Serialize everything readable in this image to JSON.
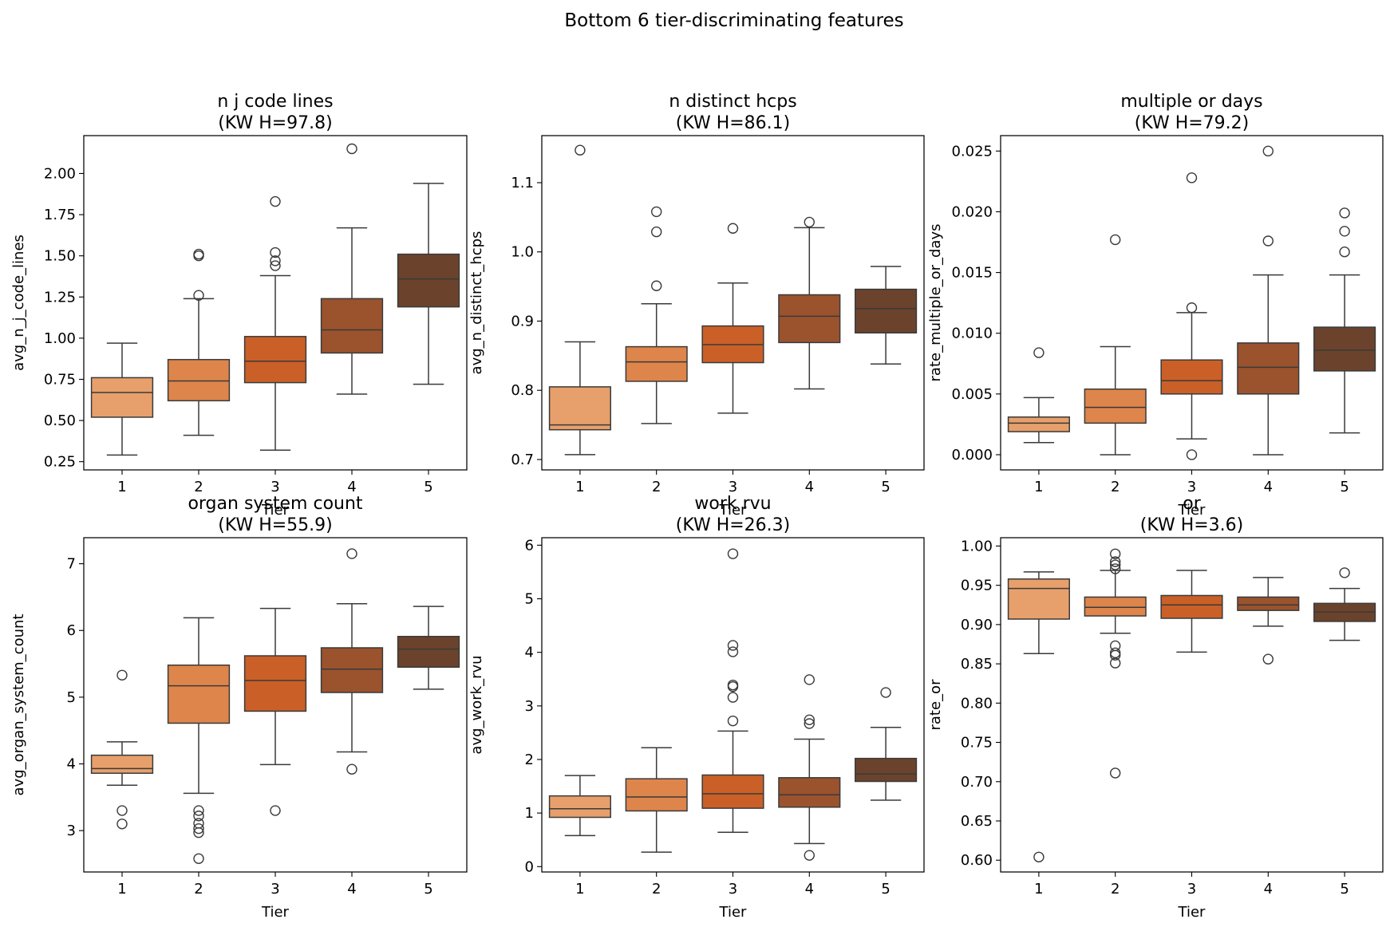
{
  "suptitle": "Bottom 6 tier-discriminating features",
  "chart_data": [
    {
      "type": "box",
      "title": "n j code lines",
      "subtitle": "(KW H=97.8)",
      "xlabel": "Tier",
      "ylabel": "avg_n_j_code_lines",
      "categories": [
        "1",
        "2",
        "3",
        "4",
        "5"
      ],
      "ylim": [
        0.2,
        2.23
      ],
      "yticks": [
        0.25,
        0.5,
        0.75,
        1.0,
        1.25,
        1.5,
        1.75,
        2.0
      ],
      "ytick_labels": [
        "0.25",
        "0.50",
        "0.75",
        "1.00",
        "1.25",
        "1.50",
        "1.75",
        "2.00"
      ],
      "boxes": [
        {
          "tier": "1",
          "whislo": 0.29,
          "q1": 0.52,
          "med": 0.67,
          "q3": 0.76,
          "whishi": 0.97,
          "fliers": []
        },
        {
          "tier": "2",
          "whislo": 0.41,
          "q1": 0.62,
          "med": 0.74,
          "q3": 0.87,
          "whishi": 1.24,
          "fliers": [
            1.26,
            1.5,
            1.51
          ]
        },
        {
          "tier": "3",
          "whislo": 0.32,
          "q1": 0.73,
          "med": 0.86,
          "q3": 1.01,
          "whishi": 1.38,
          "fliers": [
            1.44,
            1.47,
            1.52,
            1.83
          ]
        },
        {
          "tier": "4",
          "whislo": 0.66,
          "q1": 0.91,
          "med": 1.05,
          "q3": 1.24,
          "whishi": 1.67,
          "fliers": [
            2.15
          ]
        },
        {
          "tier": "5",
          "whislo": 0.72,
          "q1": 1.19,
          "med": 1.36,
          "q3": 1.51,
          "whishi": 1.94,
          "fliers": []
        }
      ]
    },
    {
      "type": "box",
      "title": "n distinct hcps",
      "subtitle": "(KW H=86.1)",
      "xlabel": "Tier",
      "ylabel": "avg_n_distinct_hcps",
      "categories": [
        "1",
        "2",
        "3",
        "4",
        "5"
      ],
      "ylim": [
        0.685,
        1.168
      ],
      "yticks": [
        0.7,
        0.8,
        0.9,
        1.0,
        1.1
      ],
      "ytick_labels": [
        "0.7",
        "0.8",
        "0.9",
        "1.0",
        "1.1"
      ],
      "boxes": [
        {
          "tier": "1",
          "whislo": 0.707,
          "q1": 0.743,
          "med": 0.75,
          "q3": 0.805,
          "whishi": 0.87,
          "fliers": [
            1.147
          ]
        },
        {
          "tier": "2",
          "whislo": 0.752,
          "q1": 0.813,
          "med": 0.841,
          "q3": 0.863,
          "whishi": 0.925,
          "fliers": [
            0.951,
            1.029,
            1.058
          ]
        },
        {
          "tier": "3",
          "whislo": 0.767,
          "q1": 0.84,
          "med": 0.866,
          "q3": 0.893,
          "whishi": 0.955,
          "fliers": [
            1.034
          ]
        },
        {
          "tier": "4",
          "whislo": 0.802,
          "q1": 0.869,
          "med": 0.907,
          "q3": 0.938,
          "whishi": 1.035,
          "fliers": [
            1.043
          ]
        },
        {
          "tier": "5",
          "whislo": 0.838,
          "q1": 0.883,
          "med": 0.918,
          "q3": 0.946,
          "whishi": 0.979,
          "fliers": []
        }
      ]
    },
    {
      "type": "box",
      "title": "multiple or days",
      "subtitle": "(KW H=79.2)",
      "xlabel": "Tier",
      "ylabel": "rate_multiple_or_days",
      "categories": [
        "1",
        "2",
        "3",
        "4",
        "5"
      ],
      "ylim": [
        -0.00125,
        0.02627
      ],
      "yticks": [
        0.0,
        0.005,
        0.01,
        0.015,
        0.02,
        0.025
      ],
      "ytick_labels": [
        "0.000",
        "0.005",
        "0.010",
        "0.015",
        "0.020",
        "0.025"
      ],
      "boxes": [
        {
          "tier": "1",
          "whislo": 0.001,
          "q1": 0.0019,
          "med": 0.0026,
          "q3": 0.0031,
          "whishi": 0.0047,
          "fliers": [
            0.0084
          ]
        },
        {
          "tier": "2",
          "whislo": 0.0,
          "q1": 0.0026,
          "med": 0.0039,
          "q3": 0.0054,
          "whishi": 0.0089,
          "fliers": [
            0.0177
          ]
        },
        {
          "tier": "3",
          "whislo": 0.0013,
          "q1": 0.005,
          "med": 0.0061,
          "q3": 0.0078,
          "whishi": 0.0117,
          "fliers": [
            0.0,
            0.0121,
            0.0228
          ]
        },
        {
          "tier": "4",
          "whislo": 0.0,
          "q1": 0.005,
          "med": 0.0072,
          "q3": 0.0092,
          "whishi": 0.0148,
          "fliers": [
            0.0176,
            0.025
          ]
        },
        {
          "tier": "5",
          "whislo": 0.0018,
          "q1": 0.0069,
          "med": 0.0086,
          "q3": 0.0105,
          "whishi": 0.0148,
          "fliers": [
            0.0167,
            0.0184,
            0.0199
          ]
        }
      ]
    },
    {
      "type": "box",
      "title": "organ system count",
      "subtitle": "(KW H=55.9)",
      "xlabel": "Tier",
      "ylabel": "avg_organ_system_count",
      "categories": [
        "1",
        "2",
        "3",
        "4",
        "5"
      ],
      "ylim": [
        2.38,
        7.39
      ],
      "yticks": [
        3,
        4,
        5,
        6,
        7
      ],
      "ytick_labels": [
        "3",
        "4",
        "5",
        "6",
        "7"
      ],
      "boxes": [
        {
          "tier": "1",
          "whislo": 3.68,
          "q1": 3.86,
          "med": 3.93,
          "q3": 4.13,
          "whishi": 4.33,
          "fliers": [
            3.1,
            3.3,
            5.33
          ]
        },
        {
          "tier": "2",
          "whislo": 3.56,
          "q1": 4.61,
          "med": 5.17,
          "q3": 5.48,
          "whishi": 6.19,
          "fliers": [
            2.58,
            2.97,
            3.03,
            3.11,
            3.22,
            3.3
          ]
        },
        {
          "tier": "3",
          "whislo": 3.99,
          "q1": 4.79,
          "med": 5.25,
          "q3": 5.62,
          "whishi": 6.33,
          "fliers": [
            3.3
          ]
        },
        {
          "tier": "4",
          "whislo": 4.18,
          "q1": 5.07,
          "med": 5.42,
          "q3": 5.74,
          "whishi": 6.4,
          "fliers": [
            3.92,
            7.15
          ]
        },
        {
          "tier": "5",
          "whislo": 5.12,
          "q1": 5.45,
          "med": 5.72,
          "q3": 5.91,
          "whishi": 6.36,
          "fliers": []
        }
      ]
    },
    {
      "type": "box",
      "title": "work rvu",
      "subtitle": "(KW H=26.3)",
      "xlabel": "Tier",
      "ylabel": "avg_work_rvu",
      "categories": [
        "1",
        "2",
        "3",
        "4",
        "5"
      ],
      "ylim": [
        -0.1,
        6.14
      ],
      "yticks": [
        0,
        1,
        2,
        3,
        4,
        5,
        6
      ],
      "ytick_labels": [
        "0",
        "1",
        "2",
        "3",
        "4",
        "5",
        "6"
      ],
      "boxes": [
        {
          "tier": "1",
          "whislo": 0.58,
          "q1": 0.92,
          "med": 1.08,
          "q3": 1.32,
          "whishi": 1.7,
          "fliers": []
        },
        {
          "tier": "2",
          "whislo": 0.27,
          "q1": 1.04,
          "med": 1.3,
          "q3": 1.64,
          "whishi": 2.22,
          "fliers": []
        },
        {
          "tier": "3",
          "whislo": 0.64,
          "q1": 1.09,
          "med": 1.36,
          "q3": 1.71,
          "whishi": 2.53,
          "fliers": [
            2.72,
            3.16,
            3.36,
            3.39,
            4.01,
            4.13,
            5.84
          ]
        },
        {
          "tier": "4",
          "whislo": 0.43,
          "q1": 1.11,
          "med": 1.34,
          "q3": 1.66,
          "whishi": 2.38,
          "fliers": [
            0.21,
            2.67,
            2.74,
            3.49
          ]
        },
        {
          "tier": "5",
          "whislo": 1.24,
          "q1": 1.59,
          "med": 1.73,
          "q3": 2.02,
          "whishi": 2.6,
          "fliers": [
            3.25
          ]
        }
      ]
    },
    {
      "type": "box",
      "title": "or",
      "subtitle": "(KW H=3.6)",
      "xlabel": "Tier",
      "ylabel": "rate_or",
      "categories": [
        "1",
        "2",
        "3",
        "4",
        "5"
      ],
      "ylim": [
        0.585,
        1.0106
      ],
      "yticks": [
        0.6,
        0.65,
        0.7,
        0.75,
        0.8,
        0.85,
        0.9,
        0.95,
        1.0
      ],
      "ytick_labels": [
        "0.60",
        "0.65",
        "0.70",
        "0.75",
        "0.80",
        "0.85",
        "0.90",
        "0.95",
        "1.00"
      ],
      "boxes": [
        {
          "tier": "1",
          "whislo": 0.863,
          "q1": 0.907,
          "med": 0.946,
          "q3": 0.958,
          "whishi": 0.967,
          "fliers": [
            0.604
          ]
        },
        {
          "tier": "2",
          "whislo": 0.889,
          "q1": 0.911,
          "med": 0.922,
          "q3": 0.935,
          "whishi": 0.969,
          "fliers": [
            0.711,
            0.851,
            0.861,
            0.864,
            0.873,
            0.971,
            0.976,
            0.98,
            0.99
          ]
        },
        {
          "tier": "3",
          "whislo": 0.865,
          "q1": 0.908,
          "med": 0.925,
          "q3": 0.937,
          "whishi": 0.969,
          "fliers": []
        },
        {
          "tier": "4",
          "whislo": 0.898,
          "q1": 0.918,
          "med": 0.925,
          "q3": 0.935,
          "whishi": 0.96,
          "fliers": [
            0.856
          ]
        },
        {
          "tier": "5",
          "whislo": 0.88,
          "q1": 0.904,
          "med": 0.916,
          "q3": 0.927,
          "whishi": 0.946,
          "fliers": [
            0.966
          ]
        }
      ]
    }
  ],
  "colors": {
    "tier_fills": [
      "#e7a06b",
      "#de854b",
      "#ca6027",
      "#9a532d",
      "#6b432c"
    ],
    "line": "#3a3a3a",
    "axis": "#000000"
  }
}
